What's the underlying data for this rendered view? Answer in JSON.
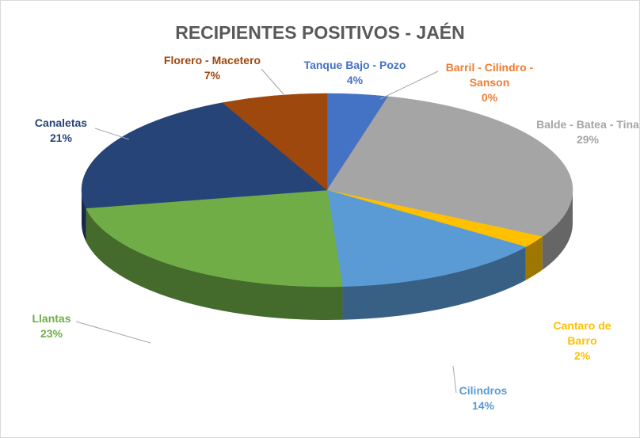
{
  "chart_data": {
    "type": "pie",
    "title": "RECIPIENTES POSITIVOS - JAÉN",
    "categories": [
      "Tanque Bajo - Pozo",
      "Barril - Cilindro - Sanson",
      "Balde - Batea - Tina",
      "Cantaro de Barro",
      "Cilindros",
      "Llantas",
      "Canaletas",
      "Florero - Macetero"
    ],
    "values": [
      4,
      0,
      29,
      2,
      14,
      23,
      21,
      7
    ],
    "value_labels": [
      "4%",
      "0%",
      "29%",
      "2%",
      "14%",
      "23%",
      "21%",
      "7%"
    ],
    "colors": [
      "#4472c4",
      "#ed7d31",
      "#a5a5a5",
      "#ffc000",
      "#5b9bd5",
      "#70ad47",
      "#264478",
      "#9e480e"
    ]
  }
}
